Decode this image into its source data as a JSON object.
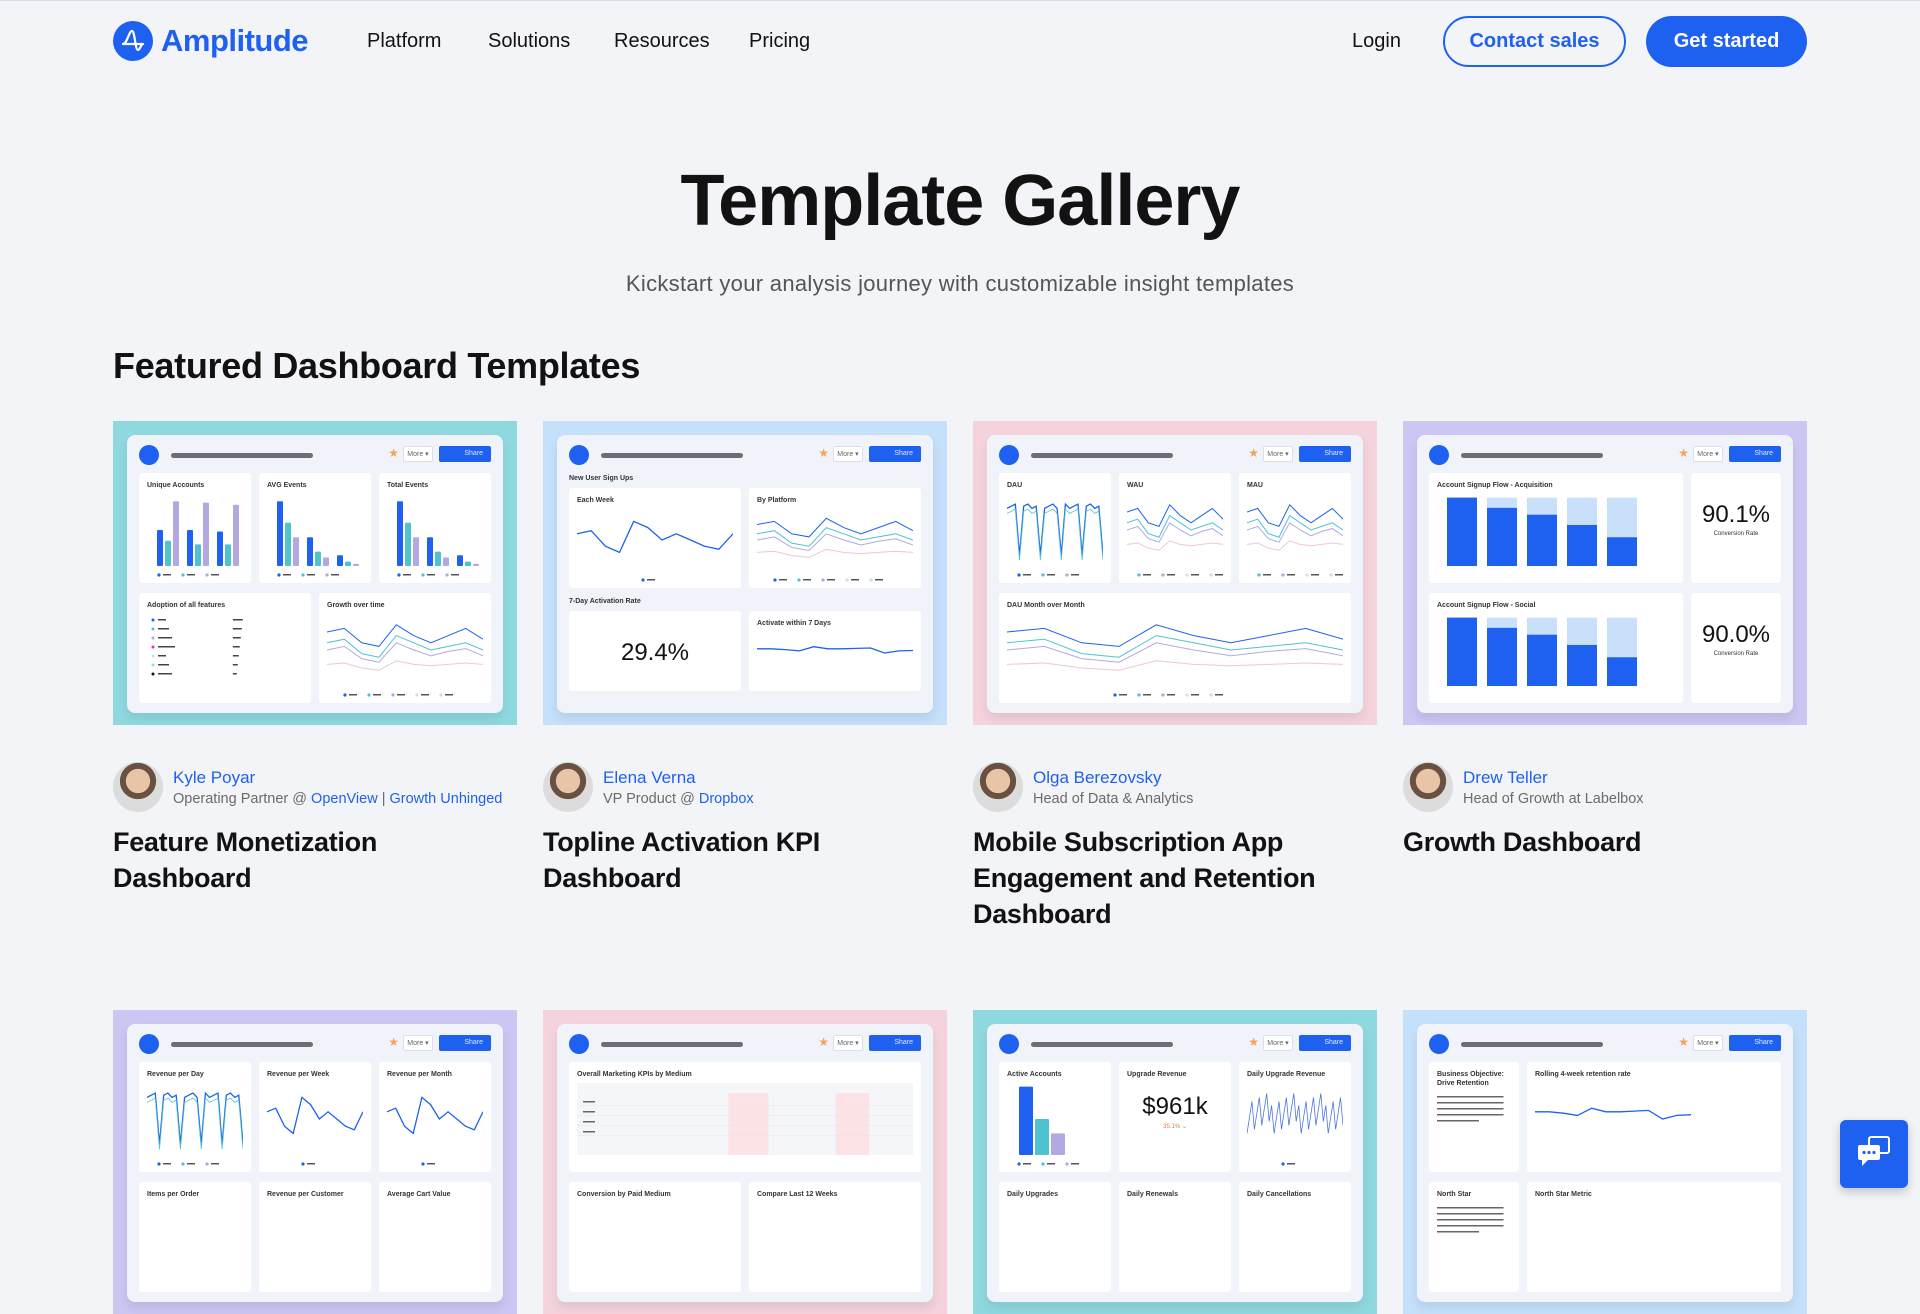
{
  "nav": {
    "brand": "Amplitude",
    "items": [
      "Platform",
      "Solutions",
      "Resources",
      "Pricing"
    ],
    "login": "Login",
    "contact_sales": "Contact sales",
    "get_started": "Get started"
  },
  "hero": {
    "title": "Template Gallery",
    "subtitle": "Kickstart your analysis journey with customizable insight templates"
  },
  "featured": {
    "title": "Featured Dashboard Templates",
    "thumb_labels": {
      "more": "More ▾",
      "share": "Share"
    },
    "colors": {
      "accent": "#1e61f0",
      "teal": "#8fd8e0",
      "blue": "#c4e0fb",
      "pink": "#f4d3dc",
      "purple": "#cbc6f2"
    },
    "cards": [
      {
        "bg": "#8fd8e0",
        "author": "Kyle Poyar",
        "role_parts": [
          {
            "t": "Operating Partner @ "
          },
          {
            "t": "OpenView",
            "link": true
          },
          {
            "t": " | "
          },
          {
            "t": "Growth Unhinged",
            "link": true
          }
        ],
        "title": "Feature Monetization Dashboard",
        "rows": [
          {
            "widgets": [
              {
                "title": "Unique Accounts",
                "type": "bars"
              },
              {
                "title": "AVG Events",
                "type": "bars2"
              },
              {
                "title": "Total Events",
                "type": "bars2"
              }
            ]
          },
          {
            "widgets": [
              {
                "title": "Adoption of all features",
                "type": "list"
              },
              {
                "title": "Growth over time",
                "type": "multiline"
              }
            ]
          }
        ]
      },
      {
        "bg": "#c4e0fb",
        "author": "Elena Verna",
        "role_parts": [
          {
            "t": "VP Product @ "
          },
          {
            "t": "Dropbox",
            "link": true
          }
        ],
        "title": "Topline Activation KPI Dashboard",
        "rows": [
          {
            "section": "New User Sign Ups",
            "widgets": [
              {
                "title": "Each Week",
                "type": "line"
              },
              {
                "title": "By Platform",
                "type": "multiline"
              }
            ]
          },
          {
            "section": "7-Day Activation Rate",
            "widgets": [
              {
                "title": "",
                "type": "kpi",
                "value": "29.4%"
              },
              {
                "title": "Activate within 7 Days",
                "type": "flat"
              }
            ]
          }
        ]
      },
      {
        "bg": "#f4d3dc",
        "author": "Olga Berezovsky",
        "role_parts": [
          {
            "t": "Head of Data & Analytics"
          }
        ],
        "title": "Mobile Subscription App Engagement and Retention Dashboard",
        "rows": [
          {
            "widgets": [
              {
                "title": "DAU",
                "type": "spiky"
              },
              {
                "title": "WAU",
                "type": "multiline"
              },
              {
                "title": "MAU",
                "type": "multiline"
              }
            ]
          },
          {
            "widgets": [
              {
                "title": "DAU Month over Month",
                "type": "multiline"
              }
            ]
          }
        ]
      },
      {
        "bg": "#cbc6f2",
        "author": "Drew Teller",
        "role_parts": [
          {
            "t": "Head of Growth at Labelbox"
          }
        ],
        "title": "Growth Dashboard",
        "rows": [
          {
            "widgets": [
              {
                "title": "Account Signup Flow - Acquisition",
                "type": "funnel"
              },
              {
                "title": "",
                "type": "kpi",
                "value": "90.1%",
                "sub": "Conversion Rate"
              }
            ]
          },
          {
            "widgets": [
              {
                "title": "Account Signup Flow - Social",
                "type": "funnel"
              },
              {
                "title": "",
                "type": "kpi",
                "value": "90.0%",
                "sub": "Conversion Rate"
              }
            ]
          }
        ]
      },
      {
        "bg": "#cbc6f2",
        "rows": [
          {
            "widgets": [
              {
                "title": "Revenue per Day",
                "type": "spiky"
              },
              {
                "title": "Revenue per Week",
                "type": "line"
              },
              {
                "title": "Revenue per Month",
                "type": "line"
              }
            ]
          },
          {
            "widgets": [
              {
                "title": "Items per Order",
                "type": "empty"
              },
              {
                "title": "Revenue per Customer",
                "type": "empty"
              },
              {
                "title": "Average Cart Value",
                "type": "empty"
              }
            ]
          }
        ]
      },
      {
        "bg": "#f4d3dc",
        "rows": [
          {
            "widgets": [
              {
                "title": "Overall Marketing KPIs by Medium",
                "type": "table"
              }
            ]
          },
          {
            "widgets": [
              {
                "title": "Conversion by Paid Medium",
                "type": "empty"
              },
              {
                "title": "Compare Last 12 Weeks",
                "type": "empty"
              }
            ]
          }
        ]
      },
      {
        "bg": "#8fd8e0",
        "rows": [
          {
            "widgets": [
              {
                "title": "Active Accounts",
                "type": "bars3"
              },
              {
                "title": "Upgrade Revenue",
                "type": "kpi",
                "value": "$961k",
                "delta": "35.1% ⌄"
              },
              {
                "title": "Daily Upgrade Revenue",
                "type": "noisy"
              }
            ]
          },
          {
            "widgets": [
              {
                "title": "Daily Upgrades",
                "type": "empty"
              },
              {
                "title": "Daily Renewals",
                "type": "empty"
              },
              {
                "title": "Daily Cancellations",
                "type": "empty"
              }
            ]
          }
        ]
      },
      {
        "bg": "#c4e0fb",
        "rows": [
          {
            "widgets": [
              {
                "title": "Business Objective: Drive Retention",
                "type": "text"
              },
              {
                "title": "Rolling 4-week retention rate",
                "type": "flat"
              }
            ]
          },
          {
            "widgets": [
              {
                "title": "North Star",
                "type": "text"
              },
              {
                "title": "North Star Metric",
                "type": "empty"
              }
            ]
          }
        ]
      }
    ]
  },
  "chat": {
    "icon": "chat-bubbles-icon"
  }
}
